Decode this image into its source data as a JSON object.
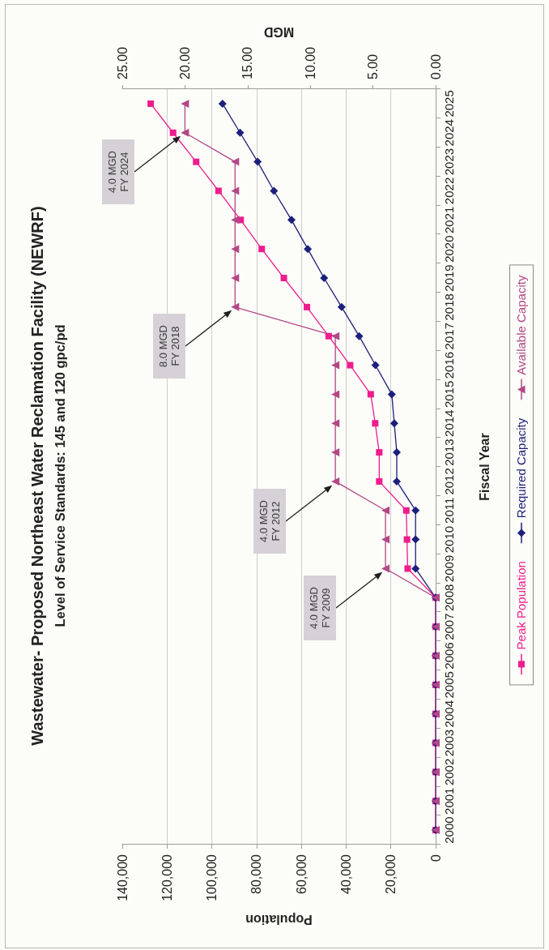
{
  "chart_data": {
    "type": "line",
    "orientation": "horizontal",
    "title": "Wastewater- Proposed Northeast Water Reclamation Facility (NEWRF)",
    "subtitle": "Level of Service Standards: 145 and 120 gpc/pd",
    "xlabel": "Population",
    "x2label": "MGD",
    "ylabel": "Fiscal Year",
    "categories": [
      "2025",
      "2024",
      "2023",
      "2022",
      "2021",
      "2020",
      "2019",
      "2018",
      "2017",
      "2016",
      "2015",
      "2014",
      "2013",
      "2012",
      "2011",
      "2010",
      "2009",
      "2008",
      "2007",
      "2006",
      "2005",
      "2004",
      "2003",
      "2002",
      "2001",
      "2000"
    ],
    "series": [
      {
        "name": "Peak Population",
        "color": "#ee1c8c",
        "marker": "square",
        "values": [
          127300,
          117300,
          107000,
          97000,
          87100,
          77700,
          67800,
          57500,
          47800,
          38200,
          29000,
          27000,
          25200,
          25200,
          13100,
          12800,
          12500,
          0,
          0,
          0,
          0,
          0,
          0,
          0,
          0,
          0
        ]
      },
      {
        "name": "Required Capacity",
        "color": "#1d1f7c",
        "marker": "diamond",
        "axis": "x2",
        "values": [
          17,
          15.6,
          14.2,
          12.9,
          11.5,
          10.2,
          8.9,
          7.5,
          6.1,
          4.8,
          3.5,
          3.3,
          3.1,
          3.1,
          1.6,
          1.6,
          1.6,
          0,
          0,
          0,
          0,
          0,
          0,
          0,
          0,
          0
        ]
      },
      {
        "name": "Available Capacity",
        "color": "#b24886",
        "marker": "triangle",
        "axis": "x2",
        "values": [
          20,
          20,
          16,
          16,
          16,
          16,
          16,
          16,
          8,
          8,
          8,
          8,
          8,
          8,
          4,
          4,
          4,
          0,
          0,
          0,
          0,
          0,
          0,
          0,
          0,
          0
        ]
      }
    ],
    "xlim": [
      140000,
      0
    ],
    "xticks": [
      0,
      {
        "value": 20000,
        "label": "20,000"
      },
      {
        "value": 40000,
        "label": "40,000"
      },
      {
        "value": 60000,
        "label": "60,000"
      },
      {
        "value": 80000,
        "label": "80,000"
      },
      {
        "value": 100000,
        "label": "100,000"
      },
      {
        "value": 120000,
        "label": "120,000"
      },
      {
        "value": 140000,
        "label": "140,000"
      }
    ],
    "x2lim": [
      25,
      0
    ],
    "x2ticks": [
      {
        "value": 0,
        "label": "0.00"
      },
      {
        "value": 5,
        "label": "5.00"
      },
      {
        "value": 10,
        "label": "10.00"
      },
      {
        "value": 15,
        "label": "15.00"
      },
      {
        "value": 20,
        "label": "20.00"
      },
      {
        "value": 25,
        "label": "25.00"
      }
    ],
    "grid": "x",
    "legend": "right",
    "line_style": "solid",
    "annotations": [
      "4.0 MGD\nFY 2009",
      "4.0 MGD\nFY 2012",
      "8.0 MGD\nFY 2018",
      "4.0 MGD\nFY 2024"
    ]
  }
}
